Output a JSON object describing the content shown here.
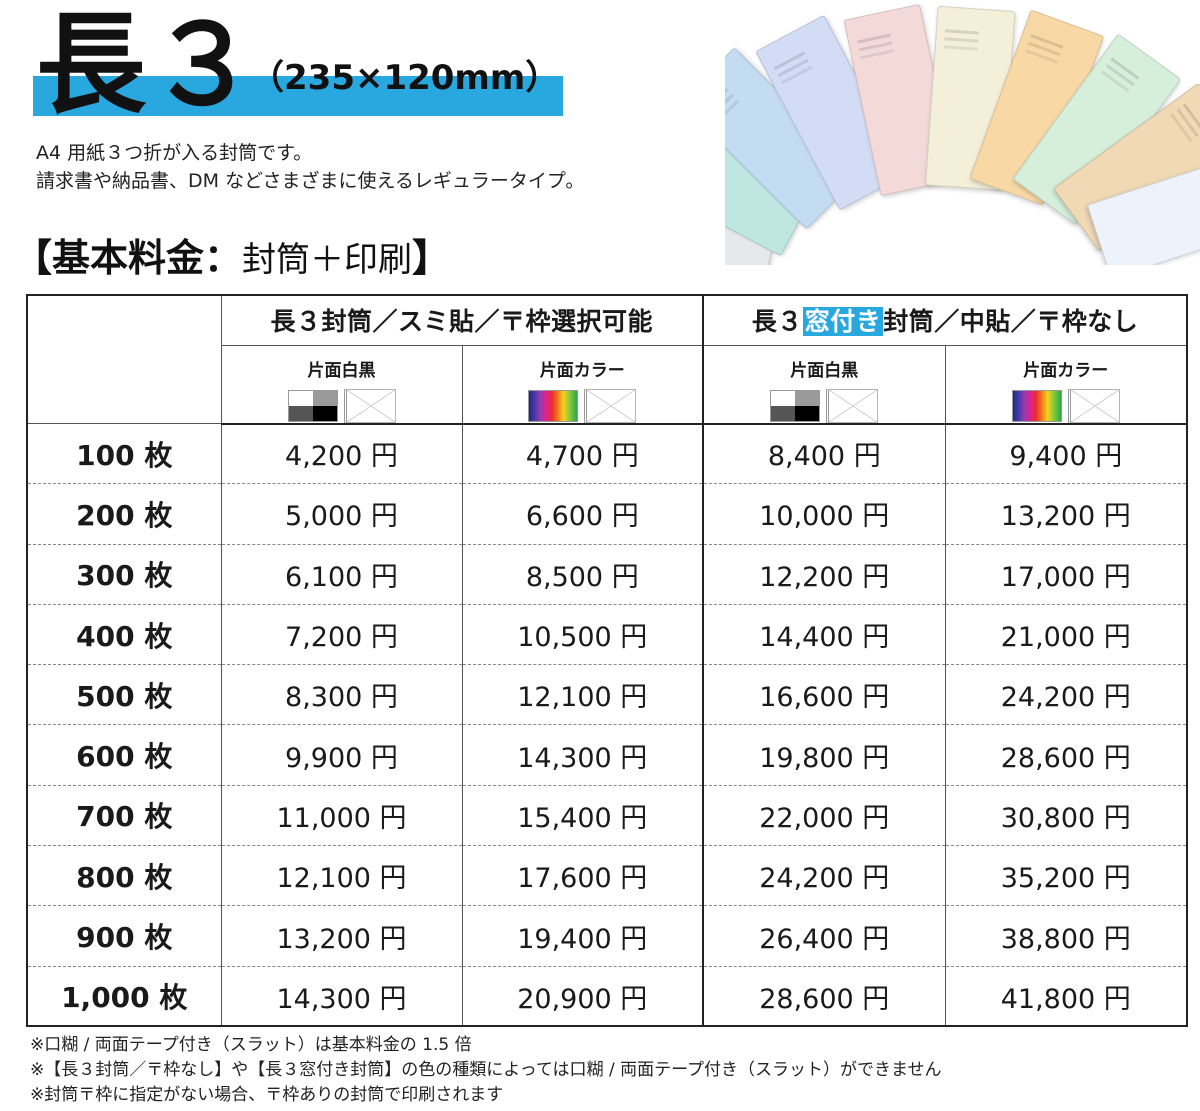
{
  "header": {
    "title": "長３",
    "size": "（235×120mm）",
    "description": [
      "A4 用紙３つ折が入る封筒です。",
      "請求書や納品書、DM などさまざまに使えるレギュラータイプ。"
    ]
  },
  "section": {
    "title_bold": "【基本料金：",
    "title_light": "封筒＋印刷",
    "title_end": "】"
  },
  "table": {
    "group1": {
      "title": "長３封筒／スミ貼／〒枠選択可能"
    },
    "group2": {
      "title_before": "長３",
      "title_highlight": "窓付き",
      "title_after": "封筒／中貼／〒枠なし"
    },
    "sub_headers": [
      "片面白黒",
      "片面カラー",
      "片面白黒",
      "片面カラー"
    ],
    "rows": [
      {
        "qty": "100 枚",
        "prices": [
          "4,200 円",
          "4,700 円",
          "8,400 円",
          "9,400 円"
        ]
      },
      {
        "qty": "200 枚",
        "prices": [
          "5,000 円",
          "6,600 円",
          "10,000 円",
          "13,200 円"
        ]
      },
      {
        "qty": "300 枚",
        "prices": [
          "6,100 円",
          "8,500 円",
          "12,200 円",
          "17,000 円"
        ]
      },
      {
        "qty": "400 枚",
        "prices": [
          "7,200 円",
          "10,500 円",
          "14,400 円",
          "21,000 円"
        ]
      },
      {
        "qty": "500 枚",
        "prices": [
          "8,300 円",
          "12,100 円",
          "16,600 円",
          "24,200 円"
        ]
      },
      {
        "qty": "600 枚",
        "prices": [
          "9,900 円",
          "14,300 円",
          "19,800 円",
          "28,600 円"
        ]
      },
      {
        "qty": "700 枚",
        "prices": [
          "11,000 円",
          "15,400 円",
          "22,000 円",
          "30,800 円"
        ]
      },
      {
        "qty": "800 枚",
        "prices": [
          "12,100 円",
          "17,600 円",
          "24,200 円",
          "35,200 円"
        ]
      },
      {
        "qty": "900 枚",
        "prices": [
          "13,200 円",
          "19,400 円",
          "26,400 円",
          "38,800 円"
        ]
      },
      {
        "qty": "1,000 枚",
        "prices": [
          "14,300 円",
          "20,900 円",
          "28,600 円",
          "41,800 円"
        ]
      }
    ]
  },
  "notes": [
    "※口糊 / 両面テープ付き（スラット）は基本料金の 1.5 倍",
    "※【長３封筒／〒枠なし】や【長３窓付き封筒】の色の種類によっては口糊 / 両面テープ付き（スラット）ができません",
    "※封筒〒枠に指定がない場合、〒枠ありの封筒で印刷されます"
  ],
  "colors": {
    "accent": "#29a8e0",
    "envelopes": [
      "#e6e8ea",
      "#bfe6e1",
      "#c4dcf2",
      "#d3dcf5",
      "#f4d9d9",
      "#f3efd8",
      "#f8d9a6",
      "#d6efdb",
      "#f0d9b5",
      "#eef2fb"
    ]
  }
}
